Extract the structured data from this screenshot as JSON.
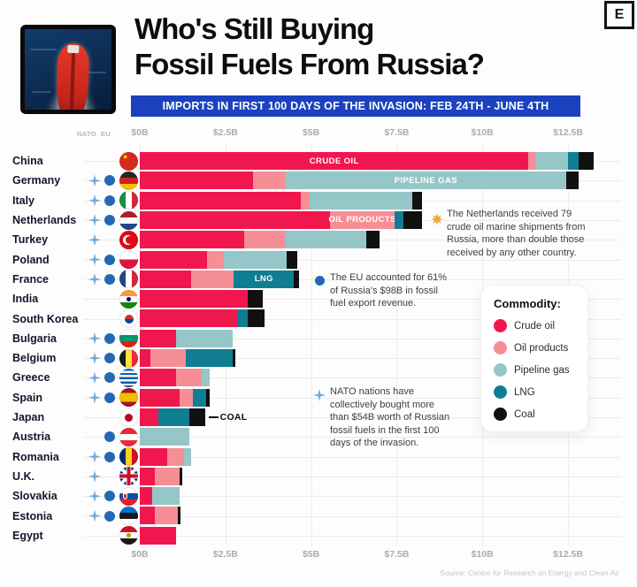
{
  "header": {
    "title_line1": "Who's Still Buying",
    "title_line2": "Fossil Fuels From Russia?",
    "banner": "IMPORTS IN FIRST 100 DAYS OF THE INVASION:  FEB 24TH - JUNE 4TH",
    "logo_letter": "E"
  },
  "columns": {
    "nato": "NATO",
    "eu": "EU"
  },
  "chart_data": {
    "type": "bar",
    "stacked": true,
    "orientation": "horizontal",
    "unit": "USD billions",
    "axis_ticks": [
      "$0B",
      "$2.5B",
      "$5B",
      "$7.5B",
      "$10B",
      "$12.5B"
    ],
    "axis_values": [
      0,
      2.5,
      5,
      7.5,
      10,
      12.5
    ],
    "series_keys": [
      "crude_oil",
      "oil_products",
      "pipeline_gas",
      "lng",
      "coal"
    ],
    "series_names": [
      "Crude oil",
      "Oil products",
      "Pipeline gas",
      "LNG",
      "Coal"
    ],
    "colors": {
      "crude_oil": "#f0174f",
      "oil_products": "#f68e96",
      "pipeline_gas": "#95c6c8",
      "lng": "#0f7e93",
      "coal": "#111111"
    },
    "rows": [
      {
        "country": "China",
        "nato": false,
        "eu": false,
        "flag": "china",
        "values": [
          11.35,
          0.2,
          0.95,
          0.3,
          0.45
        ],
        "label": {
          "segment": 0,
          "text": "CRUDE OIL"
        }
      },
      {
        "country": "Germany",
        "nato": true,
        "eu": true,
        "flag": "germany",
        "values": [
          3.3,
          0.95,
          8.2,
          0,
          0.35
        ],
        "label": {
          "segment": 2,
          "text": "PIPELINE GAS"
        }
      },
      {
        "country": "Italy",
        "nato": true,
        "eu": true,
        "flag": "italy",
        "values": [
          4.7,
          0.25,
          3.0,
          0,
          0.3
        ]
      },
      {
        "country": "Netherlands",
        "nato": true,
        "eu": true,
        "flag": "netherlands",
        "values": [
          5.55,
          1.9,
          0,
          0.25,
          0.55
        ],
        "label": {
          "segment": 1,
          "text": "OIL PRODUCTS"
        }
      },
      {
        "country": "Turkey",
        "nato": true,
        "eu": false,
        "flag": "turkey",
        "values": [
          3.05,
          1.2,
          2.35,
          0,
          0.4
        ]
      },
      {
        "country": "Poland",
        "nato": true,
        "eu": true,
        "flag": "poland",
        "values": [
          1.95,
          0.5,
          1.85,
          0,
          0.3
        ]
      },
      {
        "country": "France",
        "nato": true,
        "eu": true,
        "flag": "france",
        "values": [
          1.5,
          1.25,
          0,
          1.75,
          0.15
        ],
        "label": {
          "segment": 3,
          "text": "LNG"
        }
      },
      {
        "country": "India",
        "nato": false,
        "eu": false,
        "flag": "india",
        "values": [
          3.15,
          0,
          0,
          0,
          0.45
        ]
      },
      {
        "country": "South Korea",
        "nato": false,
        "eu": false,
        "flag": "southkorea",
        "values": [
          2.85,
          0,
          0,
          0.3,
          0.5
        ]
      },
      {
        "country": "Bulgaria",
        "nato": true,
        "eu": true,
        "flag": "bulgaria",
        "values": [
          1.05,
          0,
          1.65,
          0,
          0
        ]
      },
      {
        "country": "Belgium",
        "nato": true,
        "eu": true,
        "flag": "belgium",
        "values": [
          0.3,
          1.05,
          0,
          1.35,
          0.1
        ]
      },
      {
        "country": "Greece",
        "nato": true,
        "eu": true,
        "flag": "greece",
        "values": [
          1.05,
          0.75,
          0.25,
          0,
          0
        ]
      },
      {
        "country": "Spain",
        "nato": true,
        "eu": true,
        "flag": "spain",
        "values": [
          1.15,
          0.4,
          0,
          0.4,
          0.1
        ]
      },
      {
        "country": "Japan",
        "nato": false,
        "eu": false,
        "flag": "japan",
        "values": [
          0.55,
          0,
          0,
          0.9,
          0.45
        ],
        "outside_label": "COAL"
      },
      {
        "country": "Austria",
        "nato": false,
        "eu": true,
        "flag": "austria",
        "values": [
          0,
          0,
          1.45,
          0,
          0
        ]
      },
      {
        "country": "Romania",
        "nato": true,
        "eu": true,
        "flag": "romania",
        "values": [
          0.8,
          0.5,
          0.2,
          0,
          0
        ]
      },
      {
        "country": "U.K.",
        "nato": true,
        "eu": false,
        "flag": "uk",
        "values": [
          0.45,
          0.7,
          0,
          0,
          0.1
        ]
      },
      {
        "country": "Slovakia",
        "nato": true,
        "eu": true,
        "flag": "slovakia",
        "values": [
          0.35,
          0,
          0.8,
          0,
          0
        ]
      },
      {
        "country": "Estonia",
        "nato": true,
        "eu": true,
        "flag": "estonia",
        "values": [
          0.45,
          0.65,
          0,
          0,
          0.1
        ]
      },
      {
        "country": "Egypt",
        "nato": false,
        "eu": false,
        "flag": "egypt",
        "values": [
          1.05,
          0,
          0,
          0,
          0
        ]
      }
    ]
  },
  "annotations": [
    {
      "icon": "gold-star-icon",
      "text": "The Netherlands received 79\ncrude oil marine shipments from\nRussia, more than double those\nreceived by any other country."
    },
    {
      "icon": "eu-dot-icon",
      "text": "The EU accounted for 61%\nof Russia's $98B in fossil\nfuel export revenue."
    },
    {
      "icon": "nato-star-icon",
      "text": "NATO nations have\ncollectively bought more\nthan $54B worth of Russian\nfossil fuels in the first 100\ndays of the invasion."
    }
  ],
  "legend": {
    "title": "Commodity:",
    "items": [
      {
        "label": "Crude oil",
        "color": "#f0174f"
      },
      {
        "label": "Oil products",
        "color": "#f68e96"
      },
      {
        "label": "Pipeline gas",
        "color": "#95c6c8"
      },
      {
        "label": "LNG",
        "color": "#0f7e93"
      },
      {
        "label": "Coal",
        "color": "#111111"
      }
    ]
  },
  "source": "Source: Centre for Research on Energy and Clean Air"
}
